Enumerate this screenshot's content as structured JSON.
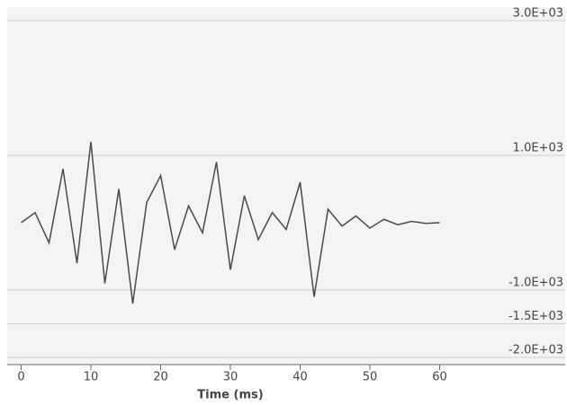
{
  "chart_data": {
    "type": "line",
    "x_label": "Time (ms)",
    "x": [
      0,
      2,
      4,
      6,
      8,
      10,
      12,
      14,
      16,
      18,
      20,
      22,
      24,
      26,
      28,
      30,
      32,
      34,
      36,
      38,
      40,
      42,
      44,
      46,
      48,
      50,
      52,
      54,
      56,
      58,
      60
    ],
    "series": [
      {
        "color": "#4a4a4a",
        "values": [
          0,
          150,
          -300,
          800,
          -600,
          1200,
          -900,
          500,
          -1200,
          300,
          700,
          -400,
          250,
          -150,
          900,
          -700,
          400,
          -250,
          150,
          -100,
          600,
          -1100,
          200,
          -50,
          100,
          -80,
          50,
          -30,
          20,
          -10,
          0
        ]
      }
    ],
    "xlim": [
      -2,
      78
    ],
    "xticks": [
      0,
      10,
      20,
      30,
      40,
      50,
      60
    ],
    "ylim": [
      -2000,
      3000
    ],
    "yticks": [
      {
        "value": 3000,
        "label": "3.0E+03"
      },
      {
        "value": 1000,
        "label": "1.0E+03"
      },
      {
        "value": -1000,
        "label": "-1.0E+03"
      },
      {
        "value": -1500,
        "label": "-1.5E+03"
      },
      {
        "value": -2000,
        "label": "-2.0E+03"
      }
    ],
    "grid": true
  }
}
